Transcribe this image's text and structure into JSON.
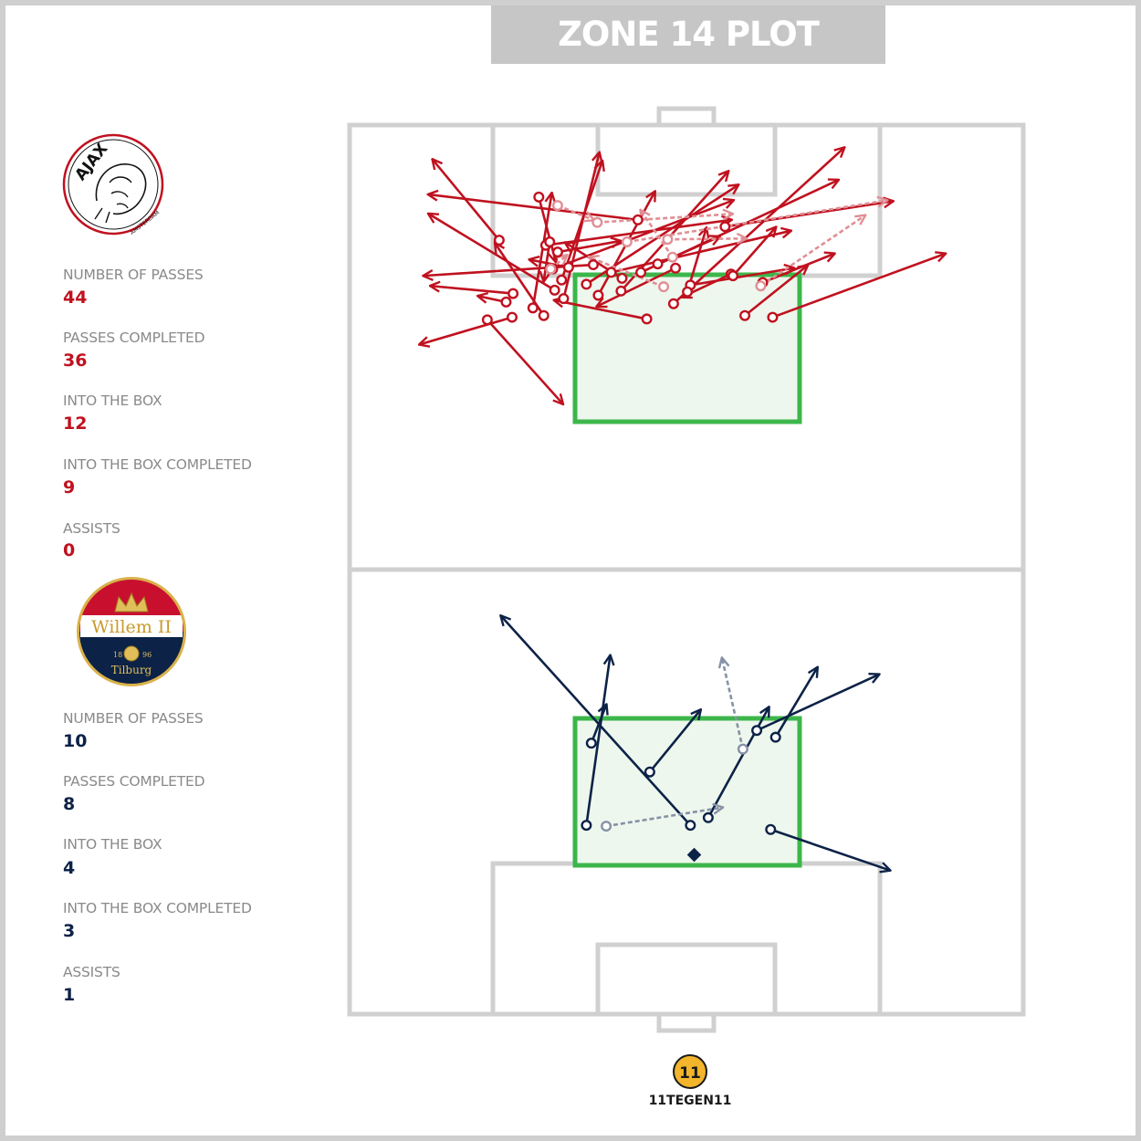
{
  "title": "ZONE 14 PLOT",
  "colors": {
    "home": "#c0111f",
    "home_faded": "#e08f95",
    "away": "#0c2247",
    "away_faded": "#8792a6",
    "zone": "#3cb64a",
    "zone_fill": "#edf7ed",
    "pitch_lines": "#d0d0d0"
  },
  "teams": [
    {
      "team": "Ajax",
      "logo_text": "AJAX",
      "logo_subtext": "AMSTERDAM",
      "stats": [
        {
          "label": "NUMBER OF PASSES",
          "value": "44"
        },
        {
          "label": "PASSES COMPLETED",
          "value": "36"
        },
        {
          "label": "INTO THE BOX",
          "value": "12"
        },
        {
          "label": "INTO THE BOX COMPLETED",
          "value": "9"
        },
        {
          "label": "ASSISTS",
          "value": "0"
        }
      ]
    },
    {
      "team": "Willem II",
      "logo_text": "Willem II",
      "logo_subtext": "Tilburg",
      "logo_year_left": "18",
      "logo_year_right": "96",
      "stats": [
        {
          "label": "NUMBER OF PASSES",
          "value": "10"
        },
        {
          "label": "PASSES COMPLETED",
          "value": "8"
        },
        {
          "label": "INTO THE BOX",
          "value": "4"
        },
        {
          "label": "INTO THE BOX COMPLETED",
          "value": "3"
        },
        {
          "label": "ASSISTS",
          "value": "1"
        }
      ]
    }
  ],
  "brand": {
    "text": "11TEGEN11",
    "badge": "11"
  },
  "chart_data": {
    "type": "scatter",
    "description_units": "pitch coordinates in metres; x across pitch width 0-68, y along each half 0-52.5 measured from that half's own goal line (attacking toward goal)",
    "series": [
      {
        "name": "Ajax",
        "passes": [
          {
            "x": [
              15.1,
              8.4
            ],
            "y": [
              38.9,
              48.4
            ],
            "completed": true
          },
          {
            "x": [
              18.5,
              20.4
            ],
            "y": [
              30.9,
              44.4
            ],
            "completed": true
          },
          {
            "x": [
              16.4,
              7.1
            ],
            "y": [
              29.8,
              26.6
            ],
            "completed": true
          },
          {
            "x": [
              20.7,
              8.0
            ],
            "y": [
              33.0,
              42.0
            ],
            "completed": true
          },
          {
            "x": [
              21.4,
              25.5
            ],
            "y": [
              34.2,
              48.2
            ],
            "completed": true
          },
          {
            "x": [
              27.4,
              38.2
            ],
            "y": [
              32.9,
              47.0
            ],
            "completed": true
          },
          {
            "x": [
              29.1,
              8.0
            ],
            "y": [
              41.3,
              44.3
            ],
            "completed": true
          },
          {
            "x": [
              24.6,
              7.5
            ],
            "y": [
              36.0,
              34.7
            ],
            "completed": true
          },
          {
            "x": [
              21.6,
              25.2
            ],
            "y": [
              32.0,
              49.2
            ],
            "completed": true
          },
          {
            "x": [
              19.8,
              38.5
            ],
            "y": [
              38.3,
              41.3
            ],
            "completed": true
          },
          {
            "x": [
              19.6,
              14.7
            ],
            "y": [
              30.0,
              38.5
            ],
            "completed": true
          },
          {
            "x": [
              20.5,
              38.7
            ],
            "y": [
              35.5,
              43.6
            ],
            "completed": true
          },
          {
            "x": [
              23.9,
              39.2
            ],
            "y": [
              33.7,
              45.4
            ],
            "completed": true
          },
          {
            "x": [
              32.7,
              49.9
            ],
            "y": [
              31.4,
              49.8
            ],
            "completed": true
          },
          {
            "x": [
              34.4,
              44.8
            ],
            "y": [
              33.6,
              35.6
            ],
            "completed": true
          },
          {
            "x": [
              39.9,
              46.2
            ],
            "y": [
              30.0,
              35.9
            ],
            "completed": true
          },
          {
            "x": [
              37.9,
              54.8
            ],
            "y": [
              40.5,
              43.5
            ],
            "completed": true
          },
          {
            "x": [
              42.7,
              60.1
            ],
            "y": [
              29.8,
              37.3
            ],
            "completed": true
          },
          {
            "x": [
              41.7,
              48.9
            ],
            "y": [
              33.9,
              37.3
            ],
            "completed": true
          },
          {
            "x": [
              29.4,
              49.3
            ],
            "y": [
              35.1,
              46.0
            ],
            "completed": true
          },
          {
            "x": [
              30.0,
              20.7
            ],
            "y": [
              29.6,
              31.8
            ],
            "completed": true
          },
          {
            "x": [
              15.8,
              13.0
            ],
            "y": [
              31.6,
              32.3
            ],
            "completed": true
          },
          {
            "x": [
              13.9,
              21.5
            ],
            "y": [
              29.5,
              19.6
            ],
            "completed": true
          },
          {
            "x": [
              20.2,
              19.6
            ],
            "y": [
              38.7,
              34.1
            ],
            "completed": true
          },
          {
            "x": [
              25.1,
              30.8
            ],
            "y": [
              32.4,
              44.6
            ],
            "completed": true
          },
          {
            "x": [
              21.0,
              27.3
            ],
            "y": [
              37.5,
              38.8
            ],
            "completed": true
          },
          {
            "x": [
              22.1,
              18.2
            ],
            "y": [
              35.7,
              36.6
            ],
            "completed": true
          },
          {
            "x": [
              16.5,
              8.2
            ],
            "y": [
              32.6,
              33.5
            ],
            "completed": true
          },
          {
            "x": [
              19.1,
              20.8
            ],
            "y": [
              44.0,
              36.4
            ],
            "completed": true
          },
          {
            "x": [
              34.1,
              36.0
            ],
            "y": [
              32.8,
              40.3
            ],
            "completed": true
          },
          {
            "x": [
              38.5,
              33.6
            ],
            "y": [
              34.9,
              32.2
            ],
            "completed": true
          },
          {
            "x": [
              26.4,
              44.5
            ],
            "y": [
              35.1,
              40.0
            ],
            "completed": true
          },
          {
            "x": [
              32.9,
              25.0
            ],
            "y": [
              35.6,
              31.1
            ],
            "completed": true
          },
          {
            "x": [
              27.5,
              21.8
            ],
            "y": [
              34.4,
              38.6
            ],
            "completed": true
          },
          {
            "x": [
              38.7,
              43.0
            ],
            "y": [
              34.7,
              40.4
            ],
            "completed": true
          },
          {
            "x": [
              31.1,
              37.3
            ],
            "y": [
              36.1,
              39.3
            ],
            "completed": true
          },
          {
            "x": [
              21.0,
              24.6
            ],
            "y": [
              43.0,
              41.3
            ],
            "completed": false
          },
          {
            "x": [
              32.6,
              29.4
            ],
            "y": [
              36.9,
              42.4
            ],
            "completed": false
          },
          {
            "x": [
              25.0,
              38.6
            ],
            "y": [
              41.0,
              42.0
            ],
            "completed": false
          },
          {
            "x": [
              31.7,
              24.2
            ],
            "y": [
              33.4,
              36.9
            ],
            "completed": false
          },
          {
            "x": [
              28.0,
              54.2
            ],
            "y": [
              38.7,
              43.6
            ],
            "completed": false
          },
          {
            "x": [
              41.5,
              52.0
            ],
            "y": [
              33.5,
              41.8
            ],
            "completed": false
          },
          {
            "x": [
              32.1,
              40.0
            ],
            "y": [
              39.0,
              39.1
            ],
            "completed": false
          },
          {
            "x": [
              20.3,
              21.9
            ],
            "y": [
              35.5,
              37.1
            ],
            "completed": false
          }
        ]
      },
      {
        "name": "Willem II",
        "passes": [
          {
            "x": [
              23.9,
              26.3
            ],
            "y": [
              30.2,
              10.2
            ],
            "completed": true
          },
          {
            "x": [
              24.4,
              25.9
            ],
            "y": [
              20.5,
              16.0
            ],
            "completed": true
          },
          {
            "x": [
              34.4,
              15.3
            ],
            "y": [
              30.2,
              5.5
            ],
            "completed": true
          },
          {
            "x": [
              30.3,
              35.4
            ],
            "y": [
              23.9,
              16.6
            ],
            "completed": true
          },
          {
            "x": [
              36.2,
              42.3
            ],
            "y": [
              29.3,
              16.3
            ],
            "completed": true
          },
          {
            "x": [
              43.0,
              47.2
            ],
            "y": [
              19.8,
              11.6
            ],
            "completed": true
          },
          {
            "x": [
              42.5,
              54.5
            ],
            "y": [
              30.7,
              35.5
            ],
            "completed": true
          },
          {
            "x": [
              41.1,
              53.4
            ],
            "y": [
              19.0,
              12.4
            ],
            "completed": true
          },
          {
            "x": [
              25.9,
              37.6
            ],
            "y": [
              30.3,
              28.1
            ],
            "completed": false
          },
          {
            "x": [
              39.7,
              37.6
            ],
            "y": [
              21.2,
              10.5
            ],
            "completed": false
          }
        ]
      }
    ]
  }
}
